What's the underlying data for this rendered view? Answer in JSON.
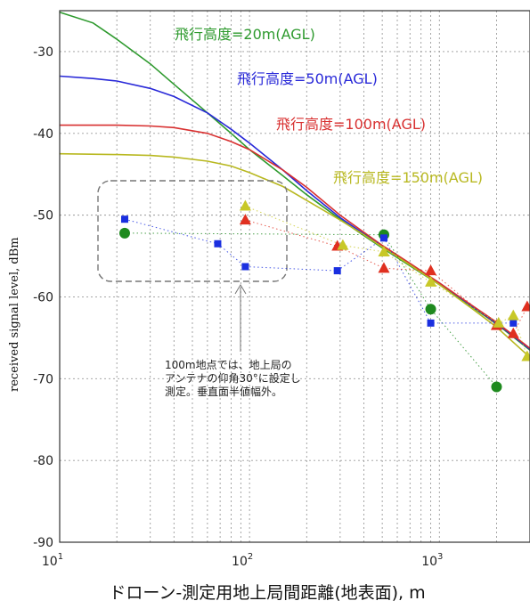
{
  "chart_data": {
    "type": "scatter",
    "title": "",
    "xlabel": "ドローン-測定用地上局間距離(地表面), m",
    "ylabel": "received signal level, dBm",
    "xscale": "log",
    "xlim": [
      10,
      3000
    ],
    "ylim": [
      -90,
      -25
    ],
    "grid": true,
    "xticks": [
      {
        "value": 10,
        "base": "10",
        "exp": "1"
      },
      {
        "value": 100,
        "base": "10",
        "exp": "2"
      },
      {
        "value": 1000,
        "base": "10",
        "exp": "3"
      }
    ],
    "yticks": [
      {
        "value": -30,
        "label": "-30"
      },
      {
        "value": -40,
        "label": "-40"
      },
      {
        "value": -50,
        "label": "-50"
      },
      {
        "value": -60,
        "label": "-60"
      },
      {
        "value": -70,
        "label": "-70"
      },
      {
        "value": -80,
        "label": "-80"
      },
      {
        "value": -90,
        "label": "-90"
      }
    ],
    "curves": [
      {
        "label": "飛行高度=20m(AGL)",
        "color": "#2e9a2e",
        "x": [
          10,
          15,
          20,
          30,
          40,
          60,
          80,
          100,
          150,
          200,
          300,
          400,
          500,
          700,
          1000,
          1500,
          2000,
          3000
        ],
        "y": [
          -25.2,
          -26.5,
          -28.5,
          -31.5,
          -34.0,
          -37.5,
          -40.0,
          -42.0,
          -45.2,
          -47.5,
          -50.5,
          -52.5,
          -54.0,
          -56.2,
          -58.5,
          -61.3,
          -63.3,
          -66.5
        ]
      },
      {
        "label": "飛行高度=50m(AGL)",
        "color": "#2828d8",
        "x": [
          10,
          15,
          20,
          30,
          40,
          60,
          80,
          100,
          150,
          200,
          300,
          400,
          500,
          700,
          1000,
          1500,
          2000,
          3000
        ],
        "y": [
          -33.0,
          -33.3,
          -33.6,
          -34.5,
          -35.5,
          -37.5,
          -39.5,
          -41.2,
          -44.5,
          -47.0,
          -50.3,
          -52.3,
          -53.8,
          -56.0,
          -58.3,
          -61.2,
          -63.2,
          -66.4
        ]
      },
      {
        "label": "飛行高度=100m(AGL)",
        "color": "#d83030",
        "x": [
          10,
          20,
          30,
          40,
          60,
          80,
          100,
          150,
          200,
          300,
          400,
          500,
          700,
          1000,
          1500,
          2000,
          3000
        ],
        "y": [
          -39.0,
          -39.0,
          -39.1,
          -39.3,
          -40.0,
          -41.0,
          -42.0,
          -44.5,
          -46.6,
          -50.0,
          -52.1,
          -53.7,
          -55.9,
          -58.3,
          -61.1,
          -63.1,
          -66.3
        ]
      },
      {
        "label": "飛行高度=150m(AGL)",
        "color": "#b8b820",
        "x": [
          10,
          20,
          30,
          40,
          60,
          80,
          100,
          150,
          200,
          300,
          400,
          500,
          700,
          1000,
          1500,
          2000,
          3000
        ],
        "y": [
          -42.5,
          -42.6,
          -42.7,
          -42.9,
          -43.4,
          -44.0,
          -44.8,
          -46.5,
          -48.2,
          -50.6,
          -52.4,
          -53.9,
          -56.1,
          -58.5,
          -61.5,
          -63.7,
          -67.4
        ]
      }
    ],
    "series": [
      {
        "marker": "circle",
        "color": "#1e8a1e",
        "x": [
          22,
          510,
          900,
          2000
        ],
        "y": [
          -52.2,
          -52.4,
          -61.5,
          -71.0
        ]
      },
      {
        "marker": "square",
        "color": "#1a2fe0",
        "x": [
          22,
          68,
          95,
          290,
          510,
          900,
          2450
        ],
        "y": [
          -50.5,
          -53.5,
          -56.3,
          -56.8,
          -52.8,
          -63.2,
          -63.2
        ]
      },
      {
        "marker": "triangle",
        "color": "#e03020",
        "x": [
          95,
          290,
          510,
          900,
          2000,
          2450,
          2900
        ],
        "y": [
          -50.6,
          -53.8,
          -56.5,
          -56.8,
          -63.5,
          -64.5,
          -61.2
        ]
      },
      {
        "marker": "triangle",
        "color": "#c8c828",
        "x": [
          95,
          310,
          510,
          900,
          2050,
          2450,
          2900
        ],
        "y": [
          -48.9,
          -53.7,
          -54.5,
          -58.2,
          -63.2,
          -62.3,
          -67.3
        ]
      }
    ],
    "annotation": {
      "lines": [
        "100m地点では、地上局の",
        "アンテナの仰角30°に設定し",
        "測定。垂直面半値幅外。"
      ]
    }
  }
}
